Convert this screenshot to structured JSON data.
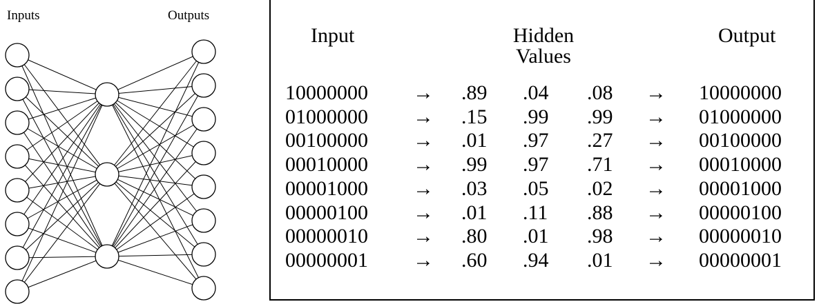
{
  "network": {
    "input_label": "Inputs",
    "output_label": "Outputs"
  },
  "table": {
    "header": [
      "Input",
      "Hidden Values",
      "Output"
    ],
    "rows": [
      [
        "10000000",
        "→",
        ".89",
        ".04",
        ".08",
        "→",
        "10000000"
      ],
      [
        "01000000",
        "→",
        ".15",
        ".99",
        ".99",
        "→",
        "01000000"
      ],
      [
        "00100000",
        "→",
        ".01",
        ".97",
        ".27",
        "→",
        "00100000"
      ],
      [
        "00010000",
        "→",
        ".99",
        ".97",
        ".71",
        "→",
        "00010000"
      ],
      [
        "00001000",
        "→",
        ".03",
        ".05",
        ".02",
        "→",
        "00001000"
      ],
      [
        "00000100",
        "→",
        ".01",
        ".11",
        ".88",
        "→",
        "00000100"
      ],
      [
        "00000010",
        "→",
        ".80",
        ".01",
        ".98",
        "→",
        "00000010"
      ],
      [
        "00000001",
        "→",
        ".60",
        ".94",
        ".01",
        "→",
        "00000001"
      ]
    ]
  }
}
